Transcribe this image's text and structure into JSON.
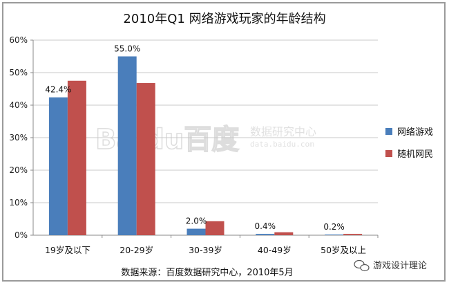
{
  "chart_data": {
    "type": "bar",
    "title": "2010年Q1  网络游戏玩家的年龄结构",
    "categories": [
      "19岁及以下",
      "20-29岁",
      "30-39岁",
      "40-49岁",
      "50岁及以上"
    ],
    "series": [
      {
        "name": "网络游戏",
        "color": "#4a7ebb",
        "values": [
          42.4,
          55.0,
          2.0,
          0.4,
          0.2
        ]
      },
      {
        "name": "随机网民",
        "color": "#c0504d",
        "values": [
          47.5,
          46.8,
          4.3,
          0.9,
          0.4
        ]
      }
    ],
    "data_labels": [
      "42.4%",
      "55.0%",
      "2.0%",
      "0.4%",
      "0.2%"
    ],
    "ylim": [
      0,
      60
    ],
    "yticks": [
      "0%",
      "10%",
      "20%",
      "30%",
      "40%",
      "50%",
      "60%"
    ],
    "grid": true,
    "legend_position": "right"
  },
  "source_note": "数据来源：百度数据研究中心，2010年5月",
  "watermark": {
    "brand": "Baidu百度",
    "subtitle": "数据研究中心",
    "url": "data.baidu.com"
  },
  "account_name": "游戏设计理论",
  "account_icon": "chat-bubble-icon"
}
